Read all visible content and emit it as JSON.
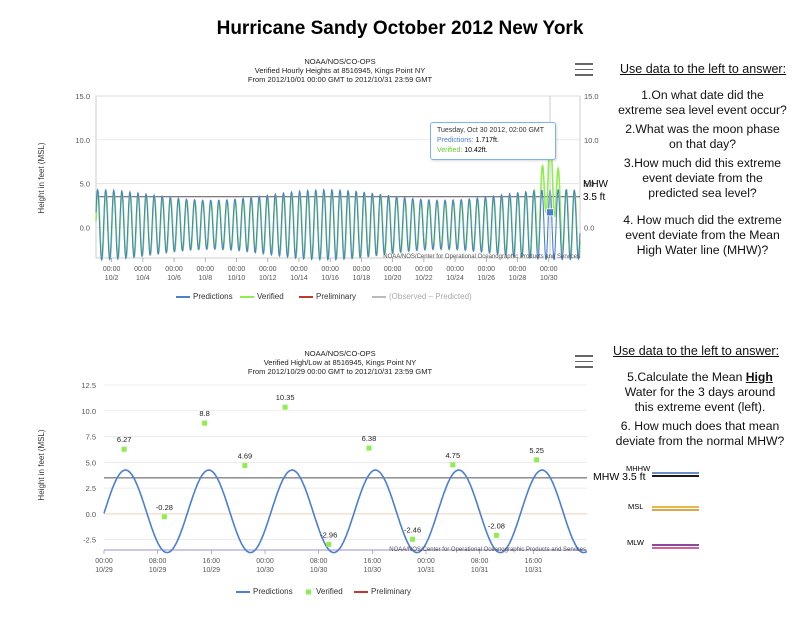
{
  "page": {
    "title": "Hurricane Sandy October 2012 New York"
  },
  "chart1": {
    "header": [
      "NOAA/NOS/CO-OPS",
      "Verified Hourly Heights at 8516945, Kings Point NY",
      "From 2012/10/01 00:00 GMT to 2012/10/31 23:59 GMT"
    ],
    "ylabel": "Height in feet (MSL)",
    "credit": "NOAA/NOS/Center for Operational Oceanographic Products and Services",
    "y_ticks": [
      "15.0",
      "10.0",
      "5.0",
      "0.0"
    ],
    "y_ticks_right": [
      "15.0",
      "10.0",
      "5.0",
      "0.0"
    ],
    "x_time": "00:00",
    "x_dates": [
      "10/2",
      "10/4",
      "10/6",
      "10/8",
      "10/10",
      "10/12",
      "10/14",
      "10/16",
      "10/18",
      "10/20",
      "10/22",
      "10/24",
      "10/26",
      "10/28",
      "10/30"
    ],
    "legend": [
      "Predictions",
      "Verified",
      "Preliminary",
      "(Observed – Predicted)"
    ],
    "mhw_label": [
      "MHW",
      "3.5 ft"
    ],
    "tooltip": {
      "date": "Tuesday, Oct 30 2012, 02:00 GMT",
      "pred_label": "Predictions:",
      "pred_value": "1.717ft.",
      "ver_label": "Verified:",
      "ver_value": "10.42ft."
    }
  },
  "chart2": {
    "header": [
      "NOAA/NOS/CO-OPS",
      "Verified High/Low at 8516945, Kings Point NY",
      "From 2012/10/29 00:00 GMT to 2012/10/31 23:59 GMT"
    ],
    "ylabel": "Height in feet (MSL)",
    "credit": "NOAA/NOS/Center for Operational Oceanographic Products and Services",
    "y_ticks": [
      "12.5",
      "10.0",
      "7.5",
      "5.0",
      "2.5",
      "0.0",
      "-2.5"
    ],
    "x_ticks": [
      [
        "00:00",
        "10/29"
      ],
      [
        "08:00",
        "10/29"
      ],
      [
        "16:00",
        "10/29"
      ],
      [
        "00:00",
        "10/30"
      ],
      [
        "08:00",
        "10/30"
      ],
      [
        "16:00",
        "10/30"
      ],
      [
        "00:00",
        "10/31"
      ],
      [
        "08:00",
        "10/31"
      ],
      [
        "16:00",
        "10/31"
      ]
    ],
    "legend": [
      "Predictions",
      "Verified",
      "Preliminary"
    ],
    "mhw_label": "MHW 3.5 ft"
  },
  "questions1": {
    "heading": "Use data to the left to answer:",
    "items": [
      [
        "1.On what date did the",
        "extreme sea level event occur?"
      ],
      [
        "2.What was the moon phase",
        "on that day?"
      ],
      [
        "3.How much did this extreme",
        "event deviate from the",
        "predicted sea level?"
      ],
      [
        "4. How much did the extreme",
        "event deviate from the Mean",
        "High Water line (MHW)?"
      ]
    ]
  },
  "questions2": {
    "heading": "Use data to the left to answer:",
    "q5_pre": "5.Calculate the Mean ",
    "q5_bold": "High",
    "q5_rest": [
      "Water for the 3 days around",
      "this extreme event (left)."
    ],
    "q6": [
      "6. How much does that mean",
      "deviate from the normal MHW?"
    ]
  },
  "datum_legend": {
    "items": [
      {
        "label": "MHHW",
        "colors": [
          "#6a8fc8",
          "#1a1a1a"
        ]
      },
      {
        "label": "MSL",
        "colors": [
          "#e6b84a",
          "#d9a84a"
        ]
      },
      {
        "label": "MLW",
        "colors": [
          "#8a4a9a",
          "#d95ba0"
        ]
      }
    ]
  },
  "colors": {
    "predictions": "#4a7fd1",
    "verified": "#90ed50",
    "preliminary": "#c0392b",
    "observed_minus_predicted": "#bbbbbb"
  },
  "chart_data": [
    {
      "type": "line",
      "title": "Verified Hourly Heights at 8516945, Kings Point NY",
      "ylabel": "Height in feet (MSL)",
      "ylim": [
        -3.5,
        15
      ],
      "x_range": [
        "2012/10/01",
        "2012/10/31"
      ],
      "series": [
        {
          "name": "Predictions",
          "description_values": {
            "amplitude_ft": 4.0,
            "mean_ft": 0.3
          }
        },
        {
          "name": "Verified",
          "peak": {
            "date": "2012/10/30 02:00",
            "value": 10.42
          }
        },
        {
          "name": "Preliminary"
        }
      ],
      "mhw": 3.5
    },
    {
      "type": "line",
      "title": "Verified High/Low at 8516945, Kings Point NY",
      "ylabel": "Height in feet (MSL)",
      "ylim": [
        -3.5,
        12.5
      ],
      "verified_points": [
        {
          "x": "10/29 03:00",
          "y": 6.27
        },
        {
          "x": "10/29 09:00",
          "y": -0.28
        },
        {
          "x": "10/29 15:00",
          "y": 8.8
        },
        {
          "x": "10/29 21:00",
          "y": 4.69
        },
        {
          "x": "10/30 03:00",
          "y": 10.35
        },
        {
          "x": "10/30 09:30",
          "y": -2.96
        },
        {
          "x": "10/30 15:30",
          "y": 6.38
        },
        {
          "x": "10/30 22:00",
          "y": -2.46
        },
        {
          "x": "10/31 04:00",
          "y": 4.75
        },
        {
          "x": "10/31 10:30",
          "y": -2.08
        },
        {
          "x": "10/31 16:30",
          "y": 5.25
        }
      ],
      "mhw": 3.5
    }
  ]
}
